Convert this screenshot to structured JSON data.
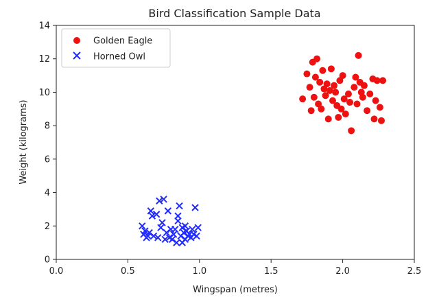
{
  "chart_data": {
    "type": "scatter",
    "title": "Bird Classification Sample Data",
    "xlabel": "Wingspan (metres)",
    "ylabel": "Weight (kilograms)",
    "xlim": [
      0.0,
      2.5
    ],
    "ylim": [
      0,
      14
    ],
    "xticks": [
      0.0,
      0.5,
      1.0,
      1.5,
      2.0,
      2.5
    ],
    "xtick_labels": [
      "0.0",
      "0.5",
      "1.0",
      "1.5",
      "2.0",
      "2.5"
    ],
    "yticks": [
      0,
      2,
      4,
      6,
      8,
      10,
      12,
      14
    ],
    "ytick_labels": [
      "0",
      "2",
      "4",
      "6",
      "8",
      "10",
      "12",
      "14"
    ],
    "grid": false,
    "legend_position": "top-left",
    "series": [
      {
        "name": "Golden Eagle",
        "marker": "circle",
        "color": "#ee1111",
        "points": [
          [
            1.72,
            9.6
          ],
          [
            1.75,
            11.1
          ],
          [
            1.77,
            10.3
          ],
          [
            1.78,
            8.9
          ],
          [
            1.79,
            11.8
          ],
          [
            1.8,
            9.7
          ],
          [
            1.81,
            10.9
          ],
          [
            1.82,
            12.0
          ],
          [
            1.83,
            9.3
          ],
          [
            1.84,
            10.6
          ],
          [
            1.85,
            9.0
          ],
          [
            1.86,
            11.3
          ],
          [
            1.87,
            10.2
          ],
          [
            1.88,
            9.8
          ],
          [
            1.89,
            10.5
          ],
          [
            1.9,
            8.4
          ],
          [
            1.91,
            10.1
          ],
          [
            1.92,
            11.4
          ],
          [
            1.93,
            9.5
          ],
          [
            1.94,
            10.4
          ],
          [
            1.95,
            10.0
          ],
          [
            1.96,
            9.2
          ],
          [
            1.98,
            10.7
          ],
          [
            1.99,
            9.0
          ],
          [
            2.0,
            11.0
          ],
          [
            2.02,
            8.7
          ],
          [
            2.04,
            9.9
          ],
          [
            2.05,
            9.4
          ],
          [
            2.06,
            7.7
          ],
          [
            2.08,
            10.3
          ],
          [
            2.09,
            10.9
          ],
          [
            2.1,
            9.3
          ],
          [
            2.11,
            12.2
          ],
          [
            2.12,
            10.6
          ],
          [
            2.13,
            10.0
          ],
          [
            2.14,
            9.7
          ],
          [
            2.15,
            10.4
          ],
          [
            2.17,
            8.9
          ],
          [
            2.19,
            9.9
          ],
          [
            2.21,
            10.8
          ],
          [
            2.22,
            8.4
          ],
          [
            2.23,
            9.5
          ],
          [
            2.24,
            10.7
          ],
          [
            2.26,
            9.1
          ],
          [
            2.27,
            8.3
          ],
          [
            2.28,
            10.7
          ],
          [
            1.97,
            8.5
          ],
          [
            2.01,
            9.6
          ]
        ]
      },
      {
        "name": "Horned Owl",
        "marker": "x",
        "color": "#1f2bff",
        "points": [
          [
            0.6,
            2.0
          ],
          [
            0.61,
            1.5
          ],
          [
            0.62,
            1.7
          ],
          [
            0.63,
            1.3
          ],
          [
            0.64,
            1.4
          ],
          [
            0.65,
            1.6
          ],
          [
            0.66,
            2.9
          ],
          [
            0.67,
            2.6
          ],
          [
            0.68,
            1.4
          ],
          [
            0.7,
            2.7
          ],
          [
            0.71,
            1.3
          ],
          [
            0.72,
            3.5
          ],
          [
            0.73,
            1.9
          ],
          [
            0.74,
            2.2
          ],
          [
            0.75,
            3.6
          ],
          [
            0.76,
            1.2
          ],
          [
            0.77,
            1.6
          ],
          [
            0.78,
            2.9
          ],
          [
            0.79,
            1.3
          ],
          [
            0.8,
            1.8
          ],
          [
            0.81,
            1.2
          ],
          [
            0.82,
            1.5
          ],
          [
            0.83,
            1.8
          ],
          [
            0.84,
            1.0
          ],
          [
            0.85,
            2.6
          ],
          [
            0.86,
            3.2
          ],
          [
            0.87,
            1.4
          ],
          [
            0.88,
            1.9
          ],
          [
            0.89,
            1.6
          ],
          [
            0.9,
            1.2
          ],
          [
            0.91,
            1.7
          ],
          [
            0.92,
            1.4
          ],
          [
            0.93,
            1.5
          ],
          [
            0.94,
            1.3
          ],
          [
            0.95,
            1.8
          ],
          [
            0.96,
            1.5
          ],
          [
            0.97,
            3.1
          ],
          [
            0.98,
            1.4
          ],
          [
            0.99,
            1.9
          ],
          [
            0.85,
            2.3
          ],
          [
            0.88,
            1.0
          ],
          [
            0.9,
            2.0
          ]
        ]
      }
    ]
  }
}
